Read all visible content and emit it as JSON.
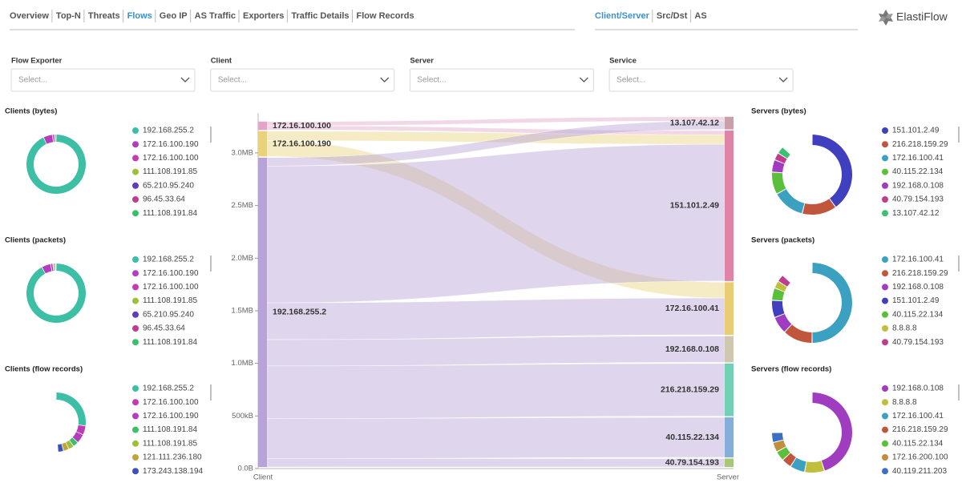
{
  "nav": {
    "tabs": [
      "Overview",
      "Top-N",
      "Threats",
      "Flows",
      "Geo IP",
      "AS Traffic",
      "Exporters",
      "Traffic Details",
      "Flow Records"
    ],
    "active": 3
  },
  "subnav": {
    "tabs": [
      "Client/Server",
      "Src/Dst",
      "AS"
    ],
    "active": 0
  },
  "logo": "ElastiFlow",
  "filters": [
    {
      "label": "Flow Exporter",
      "placeholder": "Select..."
    },
    {
      "label": "Client",
      "placeholder": "Select..."
    },
    {
      "label": "Server",
      "placeholder": "Select..."
    },
    {
      "label": "Service",
      "placeholder": "Select..."
    }
  ],
  "panels": [
    {
      "title": "Clients (bytes)",
      "items": [
        {
          "label": "192.168.255.2",
          "color": "#3cbfa4",
          "share": 93
        },
        {
          "label": "172.16.100.190",
          "color": "#b43cbf",
          "share": 5
        },
        {
          "label": "172.16.100.100",
          "color": "#bf3cb4",
          "share": 1
        },
        {
          "label": "111.108.191.85",
          "color": "#9dbf3c",
          "share": 0.3
        },
        {
          "label": "65.210.95.240",
          "color": "#5c3cbf",
          "share": 0.3
        },
        {
          "label": "96.45.33.64",
          "color": "#bf3c8f",
          "share": 0.2
        },
        {
          "label": "111.108.191.84",
          "color": "#3cbf6a",
          "share": 0.2
        }
      ]
    },
    {
      "title": "Clients (packets)",
      "items": [
        {
          "label": "192.168.255.2",
          "color": "#3cbfa4",
          "share": 92
        },
        {
          "label": "172.16.100.190",
          "color": "#b43cbf",
          "share": 5
        },
        {
          "label": "172.16.100.100",
          "color": "#bf3cb4",
          "share": 1.2
        },
        {
          "label": "111.108.191.85",
          "color": "#9dbf3c",
          "share": 0.4
        },
        {
          "label": "65.210.95.240",
          "color": "#5c3cbf",
          "share": 0.4
        },
        {
          "label": "96.45.33.64",
          "color": "#bf3c8f",
          "share": 0.3
        },
        {
          "label": "111.108.191.84",
          "color": "#3cbf6a",
          "share": 0.3
        }
      ]
    },
    {
      "title": "Clients (flow records)",
      "items": [
        {
          "label": "192.168.255.2",
          "color": "#3cbfa4",
          "share": 27
        },
        {
          "label": "172.16.100.100",
          "color": "#bf3cb4",
          "share": 5
        },
        {
          "label": "172.16.100.190",
          "color": "#b43cbf",
          "share": 5
        },
        {
          "label": "111.108.191.84",
          "color": "#3cbf6a",
          "share": 3
        },
        {
          "label": "111.108.191.85",
          "color": "#9dbf3c",
          "share": 3
        },
        {
          "label": "121.111.236.180",
          "color": "#bfa43c",
          "share": 3
        },
        {
          "label": "173.243.138.194",
          "color": "#3c4fbf",
          "share": 3
        }
      ]
    },
    {
      "title": "Servers (bytes)",
      "items": [
        {
          "label": "151.101.2.49",
          "color": "#3f3fbf",
          "share": 40
        },
        {
          "label": "216.218.159.29",
          "color": "#c0563c",
          "share": 14
        },
        {
          "label": "172.16.100.41",
          "color": "#3ca0c0",
          "share": 13
        },
        {
          "label": "40.115.22.134",
          "color": "#5cbf3c",
          "share": 9
        },
        {
          "label": "192.168.0.108",
          "color": "#a03cbf",
          "share": 5
        },
        {
          "label": "40.79.154.193",
          "color": "#bf3c8f",
          "share": 3
        },
        {
          "label": "13.107.42.12",
          "color": "#3cbf6f",
          "share": 3
        }
      ]
    },
    {
      "title": "Servers (packets)",
      "items": [
        {
          "label": "172.16.100.41",
          "color": "#3ca0c0",
          "share": 50
        },
        {
          "label": "216.218.159.29",
          "color": "#c0563c",
          "share": 12
        },
        {
          "label": "192.168.0.108",
          "color": "#a03cbf",
          "share": 7
        },
        {
          "label": "151.101.2.49",
          "color": "#3f3fbf",
          "share": 7
        },
        {
          "label": "40.115.22.134",
          "color": "#5cbf3c",
          "share": 5
        },
        {
          "label": "8.8.8.8",
          "color": "#bfbf3c",
          "share": 3
        },
        {
          "label": "40.79.154.193",
          "color": "#bf3c8f",
          "share": 3
        }
      ]
    },
    {
      "title": "Servers (flow records)",
      "items": [
        {
          "label": "192.168.0.108",
          "color": "#a03cbf",
          "share": 45
        },
        {
          "label": "8.8.8.8",
          "color": "#bfbf3c",
          "share": 8
        },
        {
          "label": "172.16.100.41",
          "color": "#3ca0c0",
          "share": 6
        },
        {
          "label": "216.218.159.29",
          "color": "#c0563c",
          "share": 4
        },
        {
          "label": "40.115.22.134",
          "color": "#5cbf3c",
          "share": 4
        },
        {
          "label": "172.16.200.100",
          "color": "#bf8f3c",
          "share": 4
        },
        {
          "label": "40.119.211.203",
          "color": "#3c6fbf",
          "share": 4
        }
      ]
    }
  ],
  "sankey": {
    "axis_left": "Client",
    "axis_right": "Server",
    "ylim": [
      0,
      3380000
    ],
    "yticks": [
      {
        "value": 0,
        "label": "0.0B"
      },
      {
        "value": 500000,
        "label": "500kB"
      },
      {
        "value": 1000000,
        "label": "1.0MB"
      },
      {
        "value": 1500000,
        "label": "1.5MB"
      },
      {
        "value": 2000000,
        "label": "2.0MB"
      },
      {
        "value": 2500000,
        "label": "2.5MB"
      },
      {
        "value": 3000000,
        "label": "3.0MB"
      }
    ],
    "clients": [
      {
        "name": "172.16.100.100",
        "color": "#e2a6c8"
      },
      {
        "name": "172.16.100.190",
        "color": "#e8d27e"
      },
      {
        "name": "192.168.255.2",
        "color": "#b7a3d8"
      }
    ],
    "servers": [
      {
        "name": "13.107.42.12",
        "color": "#c9a0a8"
      },
      {
        "name": "151.101.2.49",
        "color": "#e084a6"
      },
      {
        "name": "172.16.100.41",
        "color": "#e8cd74"
      },
      {
        "name": "192.168.0.108",
        "color": "#cfc7b0"
      },
      {
        "name": "216.218.159.29",
        "color": "#72d0b4"
      },
      {
        "name": "40.115.22.134",
        "color": "#86aedb"
      },
      {
        "name": "40.79.154.193",
        "color": "#a8c878"
      }
    ],
    "links": [
      {
        "source": 0,
        "target": 0,
        "value": 40000
      },
      {
        "source": 0,
        "target": 1,
        "value": 40000
      },
      {
        "source": 1,
        "target": 1,
        "value": 90000
      },
      {
        "source": 1,
        "target": 2,
        "value": 150000
      },
      {
        "source": 2,
        "target": 0,
        "value": 80000
      },
      {
        "source": 2,
        "target": 1,
        "value": 1300000
      },
      {
        "source": 2,
        "target": 2,
        "value": 350000
      },
      {
        "source": 2,
        "target": 3,
        "value": 250000
      },
      {
        "source": 2,
        "target": 4,
        "value": 500000
      },
      {
        "source": 2,
        "target": 5,
        "value": 380000
      },
      {
        "source": 2,
        "target": 6,
        "value": 80000
      }
    ]
  }
}
